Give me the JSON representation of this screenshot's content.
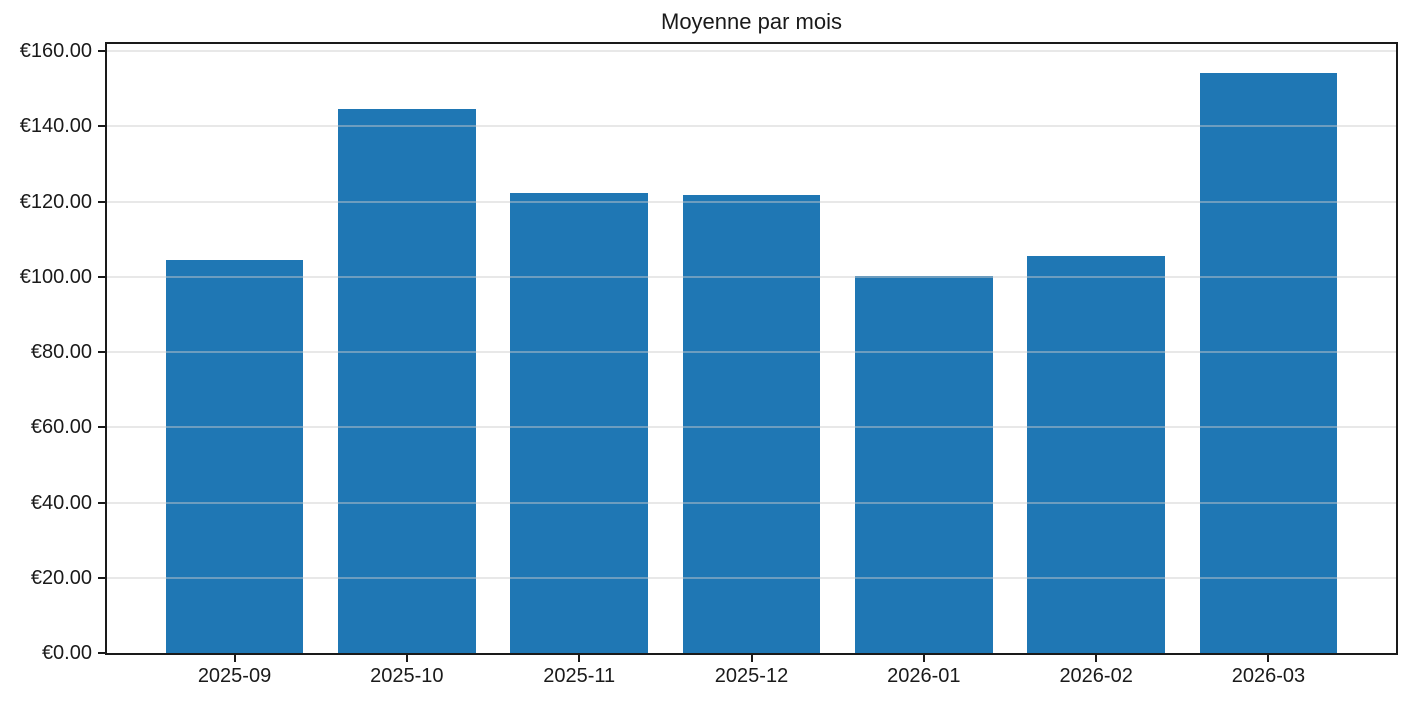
{
  "chart_data": {
    "type": "bar",
    "title": "Moyenne par mois",
    "xlabel": "",
    "ylabel": "",
    "categories": [
      "2025-09",
      "2025-10",
      "2025-11",
      "2025-12",
      "2026-01",
      "2026-02",
      "2026-03"
    ],
    "values": [
      104.5,
      144.6,
      122.4,
      121.7,
      100.2,
      105.6,
      154.1
    ],
    "currency": "EUR",
    "ytick_values": [
      0,
      20,
      40,
      60,
      80,
      100,
      120,
      140,
      160
    ],
    "ytick_labels": [
      "€0.00",
      "€20.00",
      "€40.00",
      "€60.00",
      "€80.00",
      "€100.00",
      "€120.00",
      "€140.00",
      "€160.00"
    ],
    "ylim": [
      0,
      161.9
    ],
    "xlim": [
      -0.74,
      6.74
    ],
    "bar_width_data_units": 0.8,
    "grid": "horizontal, light gray, drawn over bars",
    "legend": "none",
    "colors": {
      "bar": "#1f77b4",
      "spine": "#1a1a1a",
      "grid": "#e8e8e8",
      "text": "#1a1a1a",
      "background": "#ffffff"
    }
  }
}
